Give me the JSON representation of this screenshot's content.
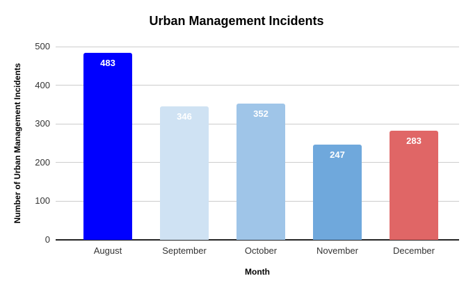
{
  "chart_data": {
    "type": "bar",
    "title": "Urban Management Incidents",
    "xlabel": "Month",
    "ylabel": "Number of Urban Management Incidents",
    "categories": [
      "August",
      "September",
      "October",
      "November",
      "December"
    ],
    "values": [
      483,
      346,
      352,
      247,
      283
    ],
    "bar_colors": [
      "#0000FF",
      "#CFE2F3",
      "#9FC5E8",
      "#6FA8DC",
      "#E06666"
    ],
    "value_label_color": "#FFFFFF",
    "ylim": [
      0,
      500
    ],
    "yticks": [
      0,
      100,
      200,
      300,
      400,
      500
    ],
    "grid": "horizontal",
    "gridline_color": "#CCCCCC",
    "axis_line_color": "#222222",
    "legend_position": "none"
  }
}
